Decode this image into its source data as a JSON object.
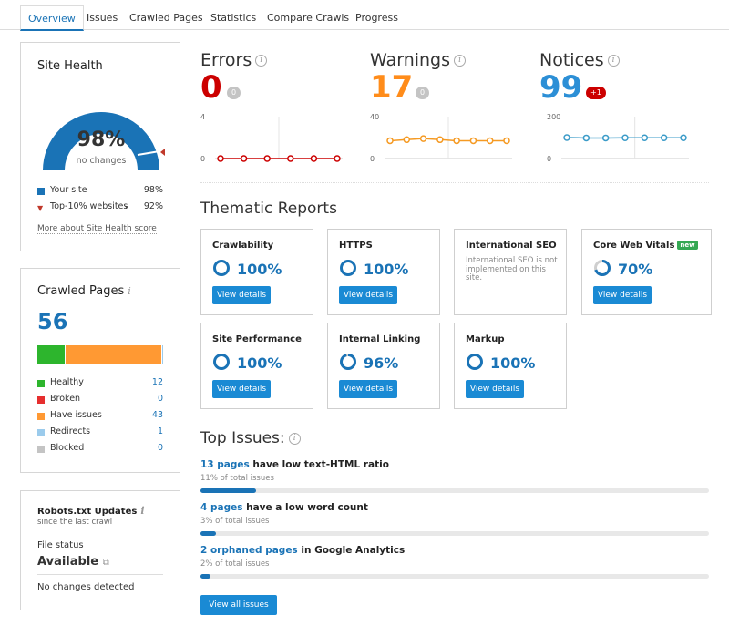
{
  "tabs": [
    {
      "label": "Overview",
      "active": true
    },
    {
      "label": "Issues"
    },
    {
      "label": "Crawled Pages"
    },
    {
      "label": "Statistics"
    },
    {
      "label": "Compare Crawls"
    },
    {
      "label": "Progress"
    }
  ],
  "site_health": {
    "title": "Site Health",
    "percent_text": "98%",
    "percent": 98,
    "subtitle": "no changes",
    "legend": [
      {
        "label": "Your site",
        "value": "98%",
        "color": "#1a73b6"
      },
      {
        "label": "Top-10% websites",
        "value": "92%",
        "color": "#c0392b"
      }
    ],
    "more_link": "More about Site Health score"
  },
  "crawled_pages": {
    "title": "Crawled Pages",
    "total": "56",
    "bar": [
      {
        "color": "#2db52d",
        "value": 12
      },
      {
        "color": "#ff9933",
        "value": 43
      },
      {
        "color": "#9bcbec",
        "value": 1
      }
    ],
    "legend": [
      {
        "label": "Healthy",
        "value": "12",
        "color": "#2db52d"
      },
      {
        "label": "Broken",
        "value": "0",
        "color": "#e62e2e"
      },
      {
        "label": "Have issues",
        "value": "43",
        "color": "#ff9933"
      },
      {
        "label": "Redirects",
        "value": "1",
        "color": "#9bcbec"
      },
      {
        "label": "Blocked",
        "value": "0",
        "color": "#c4c4c4"
      }
    ]
  },
  "robots": {
    "title": "Robots.txt Updates",
    "since": "since the last crawl",
    "file_status_label": "File status",
    "status": "Available",
    "changes": "No changes detected"
  },
  "stats": [
    {
      "label": "Errors",
      "value": "0",
      "color": "#cc0000",
      "badge": "0",
      "badge_color": "#c4c4c4",
      "chart": {
        "ymax": "4",
        "ymin": "0",
        "values": [
          0,
          0,
          0,
          0,
          0,
          0
        ],
        "color": "#cc0000"
      }
    },
    {
      "label": "Warnings",
      "value": "17",
      "color": "#ff8c1a",
      "badge": "0",
      "badge_color": "#c4c4c4",
      "chart": {
        "ymax": "40",
        "ymin": "0",
        "values": [
          17,
          18,
          19,
          18,
          17,
          17,
          17,
          17
        ],
        "color": "#f59a23"
      }
    },
    {
      "label": "Notices",
      "value": "99",
      "color": "#2c8fd6",
      "badge": "+1",
      "badge_color": "#cc0000",
      "chart": {
        "ymax": "200",
        "ymin": "0",
        "values": [
          100,
          98,
          98,
          99,
          99,
          99,
          99
        ],
        "color": "#3a9bc8"
      }
    }
  ],
  "thematic": {
    "title": "Thematic Reports",
    "reports": [
      {
        "name": "Crawlability",
        "pct": "100%",
        "value": 100,
        "button": "View details"
      },
      {
        "name": "HTTPS",
        "pct": "100%",
        "value": 100,
        "button": "View details"
      },
      {
        "name": "International SEO",
        "note": "International SEO is not implemented on this site."
      },
      {
        "name": "Core Web Vitals",
        "badge": "new",
        "pct": "70%",
        "value": 70,
        "button": "View details"
      },
      {
        "name": "Site Performance",
        "pct": "100%",
        "value": 100,
        "button": "View details"
      },
      {
        "name": "Internal Linking",
        "pct": "96%",
        "value": 96,
        "button": "View details"
      },
      {
        "name": "Markup",
        "pct": "100%",
        "value": 100,
        "button": "View details"
      }
    ]
  },
  "top_issues": {
    "title": "Top Issues:",
    "items": [
      {
        "link": "13 pages",
        "text": " have low text-HTML ratio",
        "sub": "11% of total issues",
        "share": 11
      },
      {
        "link": "4 pages",
        "text": " have a low word count",
        "sub": "3% of total issues",
        "share": 3
      },
      {
        "link": "2 orphaned pages",
        "text": " in Google Analytics",
        "sub": "2% of total issues",
        "share": 2
      }
    ],
    "button": "View all issues"
  }
}
